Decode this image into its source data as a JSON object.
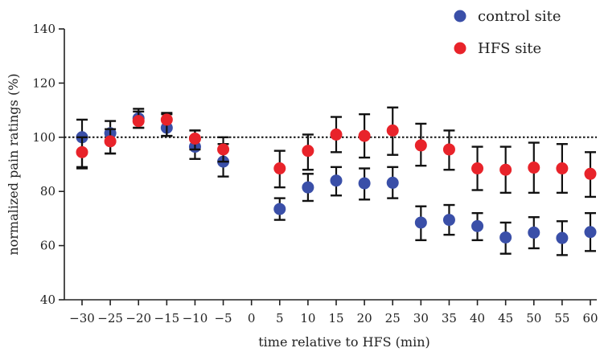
{
  "chart_data": {
    "type": "scatter",
    "xlabel": "time relative to HFS (min)",
    "ylabel": "normalized pain ratings (%)",
    "xlim": [
      -30,
      60
    ],
    "ylim": [
      40,
      140
    ],
    "x_ticks": [
      -30,
      -25,
      -20,
      -15,
      -10,
      -5,
      0,
      5,
      10,
      15,
      20,
      25,
      30,
      35,
      40,
      45,
      50,
      55,
      60
    ],
    "x_tick_labels": [
      "−30",
      "−25",
      "−20",
      "−15",
      "−10",
      "−5",
      "0",
      "5",
      "10",
      "15",
      "20",
      "25",
      "30",
      "35",
      "40",
      "45",
      "50",
      "55",
      "60"
    ],
    "y_ticks": [
      40,
      60,
      80,
      100,
      120,
      140
    ],
    "y_tick_labels": [
      "40",
      "60",
      "80",
      "100",
      "120",
      "140"
    ],
    "reference_line": 100,
    "grid": false,
    "legend_position": "top-right",
    "series": [
      {
        "name": "control site",
        "color": "#3a4fa8",
        "x": [
          -30,
          -25,
          -20,
          -15,
          -10,
          -5,
          5,
          10,
          15,
          20,
          25,
          30,
          35,
          40,
          45,
          50,
          55,
          60
        ],
        "y": [
          100,
          101.5,
          107,
          103.5,
          96.5,
          91,
          73.5,
          81.5,
          84,
          83,
          83.2,
          68.5,
          69.5,
          67.2,
          63,
          64.8,
          62.8,
          65
        ],
        "err_low": [
          88.5,
          94,
          103.5,
          100.5,
          92,
          85.5,
          69.5,
          76.5,
          78.5,
          77,
          77.5,
          62,
          64,
          62,
          57,
          59,
          56.5,
          58
        ],
        "err_high": [
          106.5,
          106,
          110.5,
          108.5,
          102.5,
          97.5,
          77.5,
          86.5,
          89,
          88.5,
          89,
          74.5,
          75,
          72,
          68.5,
          70.5,
          69,
          72
        ]
      },
      {
        "name": "HFS site",
        "color": "#e8232a",
        "x": [
          -30,
          -25,
          -20,
          -15,
          -10,
          -5,
          5,
          10,
          15,
          20,
          25,
          30,
          35,
          40,
          45,
          50,
          55,
          60
        ],
        "y": [
          94.5,
          98.5,
          106,
          106.5,
          99.5,
          95.5,
          88.5,
          95,
          101,
          100.5,
          102.5,
          97,
          95.5,
          88.5,
          88,
          88.8,
          88.5,
          86.5
        ],
        "err_low": [
          89,
          94,
          103.5,
          100.5,
          95.5,
          91,
          81.5,
          88,
          94.5,
          92.5,
          93.5,
          89.5,
          88,
          80.5,
          79.5,
          79.5,
          79.5,
          78
        ],
        "err_high": [
          100,
          103,
          109.5,
          109,
          102.5,
          100,
          95,
          101,
          107.5,
          108.5,
          111,
          105,
          102.5,
          96.5,
          96.5,
          98,
          97.5,
          94.5
        ]
      }
    ]
  }
}
